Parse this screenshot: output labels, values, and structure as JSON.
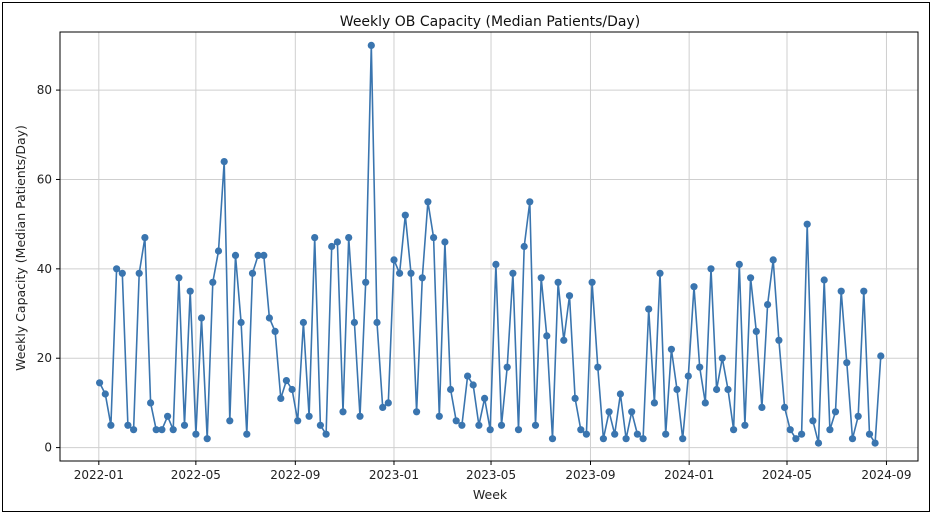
{
  "chart_data": {
    "type": "line",
    "title": "Weekly OB Capacity (Median Patients/Day)",
    "xlabel": "Week",
    "ylabel": "Weekly Capacity (Median Patients/Day)",
    "ylim": [
      -3,
      93
    ],
    "yticks": [
      0,
      20,
      40,
      60,
      80
    ],
    "xlim": [
      "2021-11-14",
      "2024-10-10"
    ],
    "xticks": [
      {
        "date": "2022-01-01",
        "label": "2022-01"
      },
      {
        "date": "2022-05-01",
        "label": "2022-05"
      },
      {
        "date": "2022-09-01",
        "label": "2022-09"
      },
      {
        "date": "2023-01-01",
        "label": "2023-01"
      },
      {
        "date": "2023-05-01",
        "label": "2023-05"
      },
      {
        "date": "2023-09-01",
        "label": "2023-09"
      },
      {
        "date": "2024-01-01",
        "label": "2024-01"
      },
      {
        "date": "2024-05-01",
        "label": "2024-05"
      },
      {
        "date": "2024-09-01",
        "label": "2024-09"
      }
    ],
    "grid": true,
    "color": "#3a75af",
    "start_date": "2022-01-02",
    "interval_days": 7,
    "values": [
      14.5,
      12,
      5,
      40,
      39,
      5,
      4,
      39,
      47,
      10,
      4,
      4,
      7,
      4,
      38,
      5,
      35,
      3,
      29,
      2,
      37,
      44,
      64,
      6,
      43,
      28,
      3,
      39,
      43,
      43,
      29,
      26,
      11,
      15,
      13,
      6,
      28,
      7,
      47,
      5,
      3,
      45,
      46,
      8,
      47,
      28,
      7,
      37,
      90,
      28,
      9,
      10,
      42,
      39,
      52,
      39,
      8,
      38,
      55,
      47,
      7,
      46,
      13,
      6,
      5,
      16,
      14,
      5,
      11,
      4,
      41,
      5,
      18,
      39,
      4,
      45,
      55,
      5,
      38,
      25,
      2,
      37,
      24,
      34,
      11,
      4,
      3,
      37,
      18,
      2,
      8,
      3,
      12,
      2,
      8,
      3,
      2,
      31,
      10,
      39,
      3,
      22,
      13,
      2,
      16,
      36,
      18,
      10,
      40,
      13,
      20,
      13,
      4,
      41,
      5,
      38,
      26,
      9,
      32,
      42,
      24,
      9,
      4,
      2,
      3,
      50,
      6,
      1,
      37.5,
      4,
      8,
      35,
      19,
      2,
      7,
      35,
      3,
      1,
      20.5
    ]
  }
}
